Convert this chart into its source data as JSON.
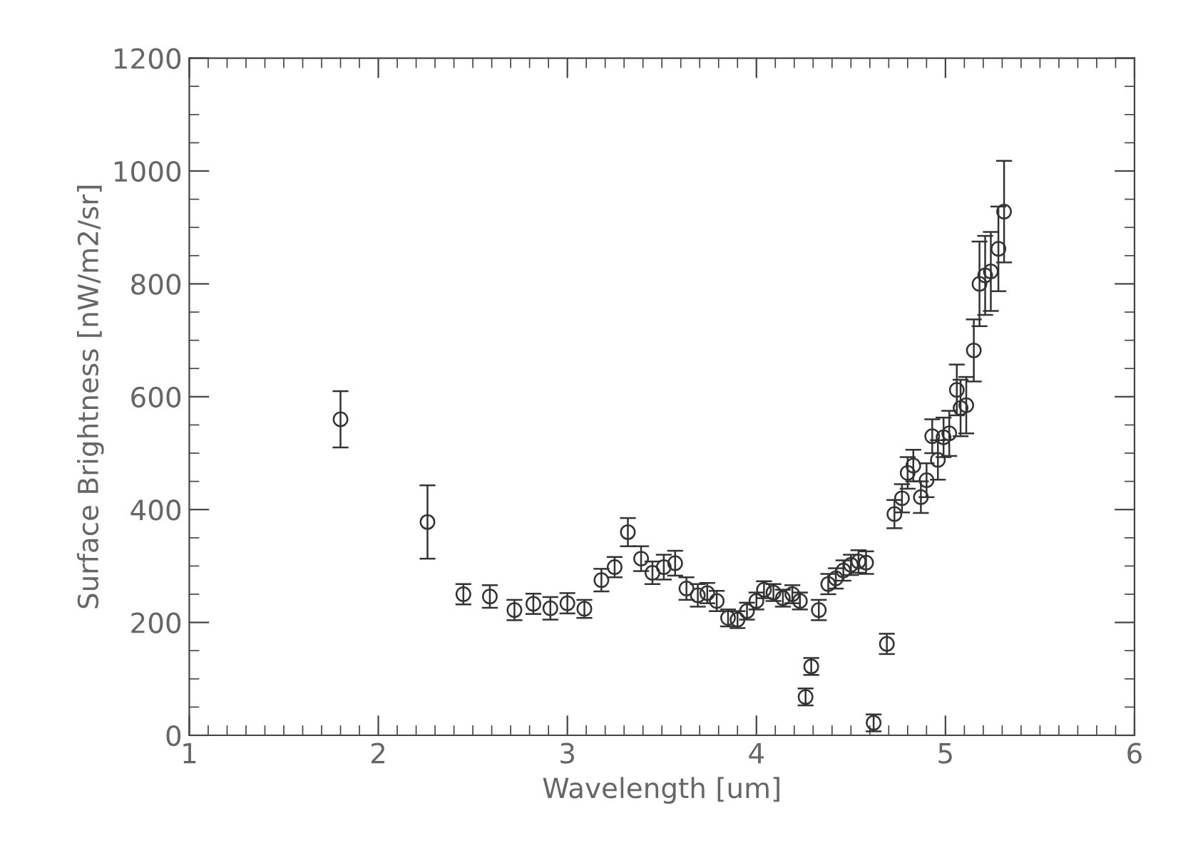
{
  "chart_data": {
    "type": "scatter",
    "xlabel": "Wavelength [um]",
    "ylabel": "Surface Brightness [nW/m2/sr]",
    "xlim": [
      1,
      6
    ],
    "xticks": [
      1,
      2,
      3,
      4,
      5,
      6
    ],
    "ylim": [
      0,
      1200
    ],
    "yticks": [
      0,
      200,
      400,
      600,
      800,
      1000,
      1200
    ],
    "grid": false,
    "marker": "circle",
    "series": [
      {
        "color": "#333333",
        "x": [
          1.8,
          2.26,
          2.45,
          2.59,
          2.72,
          2.82,
          2.91,
          3.0,
          3.09,
          3.18,
          3.25,
          3.32,
          3.39,
          3.45,
          3.51,
          3.57,
          3.63,
          3.69,
          3.74,
          3.79,
          3.85,
          3.9,
          3.95,
          4.0,
          4.04,
          4.09,
          4.14,
          4.19,
          4.23,
          4.26,
          4.29,
          4.33,
          4.38,
          4.42,
          4.46,
          4.5,
          4.54,
          4.58,
          4.62,
          4.69,
          4.73,
          4.77,
          4.8,
          4.83,
          4.87,
          4.9,
          4.93,
          4.96,
          4.99,
          5.02,
          5.06,
          5.08,
          5.11,
          5.15,
          5.18,
          5.21,
          5.24,
          5.28,
          5.31
        ],
        "values": [
          560,
          378,
          250,
          246,
          222,
          233,
          225,
          234,
          224,
          275,
          298,
          360,
          313,
          288,
          298,
          305,
          260,
          248,
          252,
          238,
          208,
          205,
          220,
          238,
          258,
          253,
          243,
          250,
          238,
          68,
          122,
          222,
          268,
          278,
          292,
          302,
          308,
          306,
          22,
          162,
          392,
          420,
          465,
          478,
          422,
          452,
          530,
          488,
          528,
          535,
          612,
          580,
          585,
          682,
          800,
          815,
          822,
          862,
          928
        ],
        "errors": [
          50,
          65,
          18,
          20,
          18,
          18,
          20,
          18,
          16,
          20,
          18,
          25,
          22,
          20,
          22,
          22,
          20,
          20,
          18,
          18,
          15,
          15,
          15,
          15,
          15,
          15,
          15,
          16,
          15,
          15,
          15,
          18,
          18,
          18,
          18,
          18,
          20,
          20,
          15,
          18,
          25,
          25,
          28,
          28,
          28,
          30,
          30,
          35,
          35,
          40,
          45,
          50,
          50,
          55,
          75,
          70,
          70,
          75,
          90
        ]
      }
    ]
  }
}
